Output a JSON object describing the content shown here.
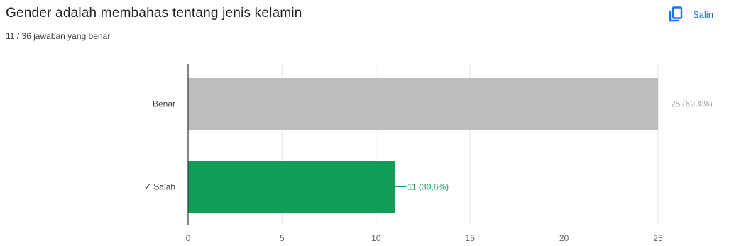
{
  "question": {
    "title": "Gender adalah membahas tentang jenis kelamin",
    "score_text": "11 / 36 jawaban yang benar"
  },
  "copy_button": {
    "label": "Salin",
    "icon": "copy-icon"
  },
  "colors": {
    "correct": "#0f9d58",
    "incorrect": "#bdbdbd",
    "correct_label": "#0f9d58",
    "incorrect_label": "#9e9e9e",
    "accent": "#1a73e8"
  },
  "chart_data": {
    "type": "bar",
    "orientation": "horizontal",
    "categories": [
      "Benar",
      "✓ Salah"
    ],
    "values": [
      25,
      11
    ],
    "data_labels": [
      "25 (69,4%)",
      "11 (30,6%)"
    ],
    "correct_flags": [
      false,
      true
    ],
    "x_ticks": [
      "0",
      "5",
      "10",
      "15",
      "20",
      "25"
    ],
    "xlim": [
      0,
      25
    ],
    "grid": true,
    "title": "",
    "xlabel": "",
    "ylabel": ""
  }
}
